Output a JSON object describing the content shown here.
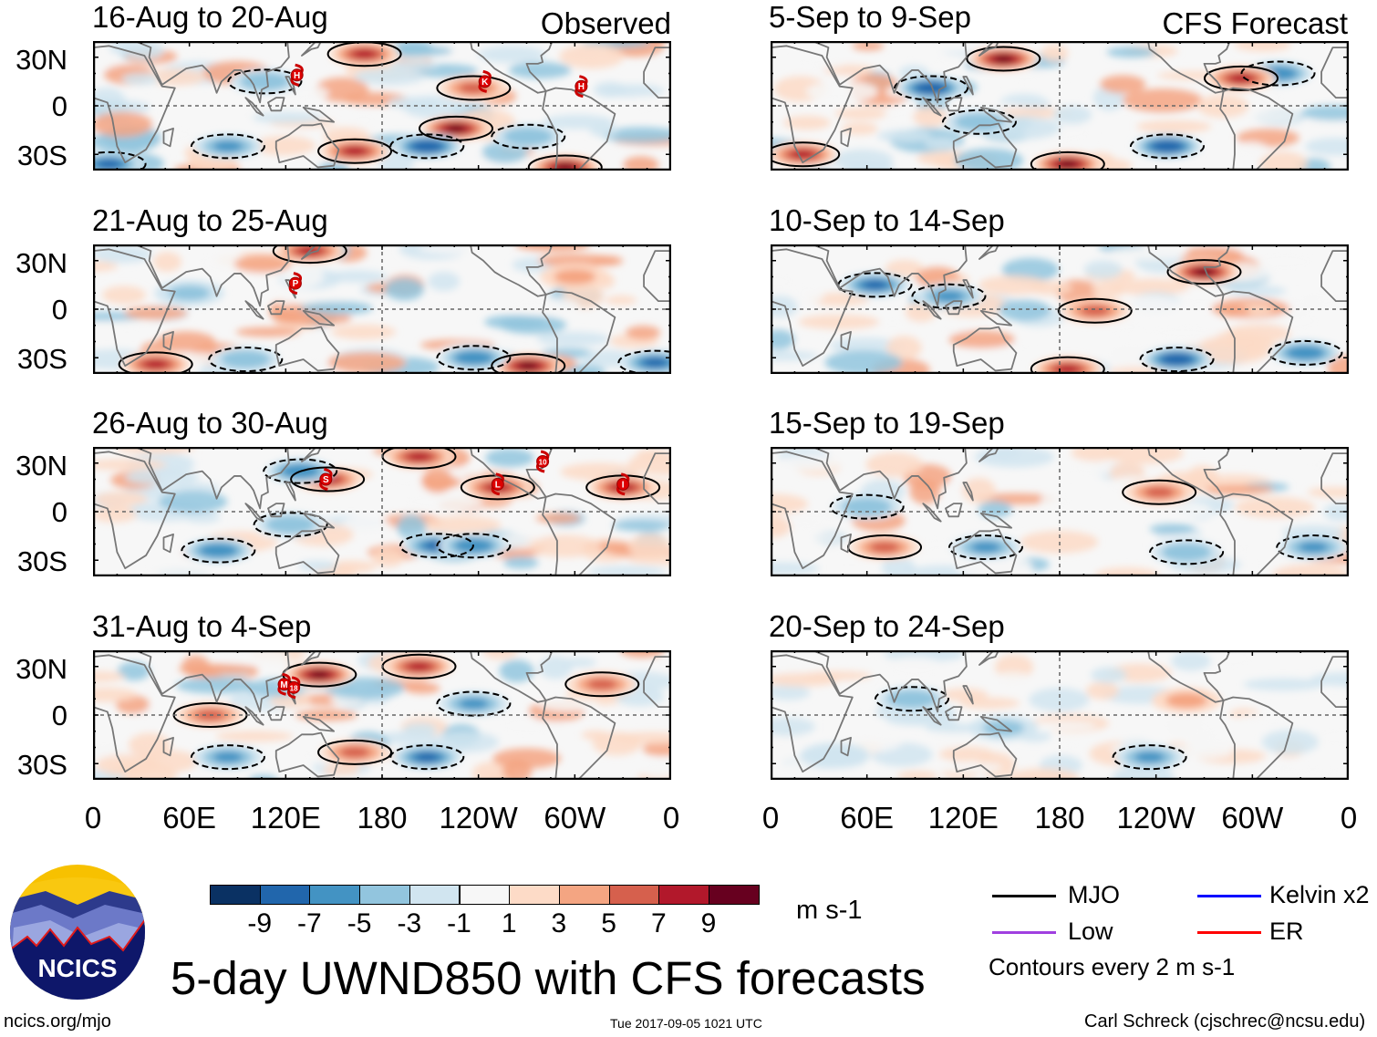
{
  "header": {
    "observed_label": "Observed",
    "forecast_label": "CFS Forecast"
  },
  "axes": {
    "lat_labels": [
      "30N",
      "0",
      "30S"
    ],
    "lon_labels": [
      "0",
      "60E",
      "120E",
      "180",
      "120W",
      "60W",
      "0"
    ]
  },
  "colors": [
    "#0a3163",
    "#2166ac",
    "#4393c3",
    "#92c5de",
    "#d1e5f0",
    "#f7f7f7",
    "#fddbc7",
    "#f4a582",
    "#d6604d",
    "#b2182b",
    "#67001f"
  ],
  "colorbar": {
    "labels": [
      "-9",
      "-7",
      "-5",
      "-3",
      "-1",
      "1",
      "3",
      "5",
      "7",
      "9"
    ],
    "units": "m s-1"
  },
  "legend": {
    "items": [
      {
        "label": "MJO",
        "color": "#000000"
      },
      {
        "label": "Kelvin x2",
        "color": "#0000ff"
      },
      {
        "label": "Low",
        "color": "#a040e0"
      },
      {
        "label": "ER",
        "color": "#ff0000"
      }
    ],
    "contour_note": "Contours every 2 m s-1"
  },
  "footer": {
    "title": "5-day UWND850 with CFS forecasts",
    "logo_text": "NCICS",
    "url": "ncics.org/mjo",
    "timestamp": "Tue 2017-09-05 1021 UTC",
    "author": "Carl Schreck (cjschrec@ncsu.edu)"
  },
  "chart_data": {
    "type": "heatmap",
    "variable": "850-hPa zonal wind anomaly",
    "units": "m s-1",
    "lon_range": [
      0,
      360
    ],
    "lat_range": [
      -40,
      40
    ],
    "panels": [
      {
        "title": "16-Aug to 20-Aug",
        "kind": "Observed",
        "storms": [
          {
            "label": "H",
            "lon": 127,
            "lat": 19
          },
          {
            "label": "K",
            "lon": 244,
            "lat": 15
          },
          {
            "label": "H",
            "lon": 304,
            "lat": 12
          }
        ],
        "anomalies": [
          [
            163,
            -28,
            8
          ],
          [
            226,
            -14,
            9
          ],
          [
            208,
            -25,
            -9
          ],
          [
            84,
            -25,
            -6
          ],
          [
            169,
            32,
            8
          ],
          [
            10,
            -36,
            -8
          ],
          [
            107,
            15,
            -5
          ],
          [
            237,
            11,
            5
          ],
          [
            271,
            -19,
            -5
          ],
          [
            294,
            -38,
            9
          ]
        ]
      },
      {
        "title": "21-Aug to 25-Aug",
        "kind": "Observed",
        "storms": [
          {
            "label": "P",
            "lon": 126,
            "lat": 16
          }
        ],
        "anomalies": [
          [
            271,
            -35,
            9
          ],
          [
            237,
            -30,
            -7
          ],
          [
            39,
            -34,
            7
          ],
          [
            95,
            -31,
            -5
          ],
          [
            350,
            -33,
            -8
          ],
          [
            135,
            36,
            7
          ],
          [
            60,
            10,
            -4
          ],
          [
            300,
            20,
            4
          ]
        ]
      },
      {
        "title": "26-Aug to 30-Aug",
        "kind": "Observed",
        "storms": [
          {
            "label": "S",
            "lon": 145,
            "lat": 20
          },
          {
            "label": "L",
            "lon": 252,
            "lat": 17
          },
          {
            "label": "10",
            "lon": 280,
            "lat": 31
          },
          {
            "label": "I",
            "lon": 330,
            "lat": 17
          }
        ],
        "anomalies": [
          [
            78,
            -24,
            -7
          ],
          [
            214,
            -21,
            -8
          ],
          [
            237,
            -21,
            -7
          ],
          [
            146,
            20,
            8
          ],
          [
            252,
            15,
            8
          ],
          [
            330,
            15,
            8
          ],
          [
            129,
            25,
            -7
          ],
          [
            203,
            34,
            7
          ],
          [
            123,
            -8,
            -5
          ]
        ]
      },
      {
        "title": "31-Aug to 4-Sep",
        "kind": "Observed",
        "storms": [
          {
            "label": "M",
            "lon": 119,
            "lat": 19
          },
          {
            "label": "18",
            "lon": 125,
            "lat": 17
          }
        ],
        "anomalies": [
          [
            141,
            25,
            9
          ],
          [
            203,
            30,
            7
          ],
          [
            208,
            -26,
            -8
          ],
          [
            84,
            -26,
            -6
          ],
          [
            163,
            -23,
            6
          ],
          [
            317,
            19,
            6
          ],
          [
            73,
            0,
            5
          ],
          [
            237,
            7,
            -6
          ]
        ]
      },
      {
        "title": "5-Sep to 9-Sep",
        "kind": "CFS Forecast",
        "storms": [],
        "anomalies": [
          [
            100,
            11,
            -9
          ],
          [
            145,
            29,
            9
          ],
          [
            247,
            -25,
            -9
          ],
          [
            185,
            -36,
            9
          ],
          [
            316,
            20,
            -7
          ],
          [
            293,
            17,
            8
          ],
          [
            20,
            -30,
            8
          ],
          [
            130,
            -10,
            -5
          ]
        ]
      },
      {
        "title": "10-Sep to 14-Sep",
        "kind": "CFS Forecast",
        "storms": [],
        "anomalies": [
          [
            270,
            23,
            9
          ],
          [
            65,
            15,
            -8
          ],
          [
            253,
            -31,
            -9
          ],
          [
            185,
            -37,
            7
          ],
          [
            333,
            -27,
            -7
          ],
          [
            111,
            8,
            -6
          ],
          [
            202,
            -1,
            5
          ]
        ]
      },
      {
        "title": "15-Sep to 19-Sep",
        "kind": "CFS Forecast",
        "storms": [],
        "anomalies": [
          [
            242,
            12,
            6
          ],
          [
            71,
            -22,
            6
          ],
          [
            134,
            -22,
            -6
          ],
          [
            338,
            -22,
            -6
          ],
          [
            60,
            3,
            -5
          ],
          [
            259,
            -25,
            -5
          ]
        ]
      },
      {
        "title": "20-Sep to 24-Sep",
        "kind": "CFS Forecast",
        "storms": [],
        "anomalies": [
          [
            88,
            10,
            -5
          ],
          [
            236,
            -26,
            -6
          ],
          [
            145,
            -8,
            -4
          ],
          [
            259,
            9,
            4
          ],
          [
            40,
            -25,
            -3
          ]
        ]
      }
    ]
  }
}
